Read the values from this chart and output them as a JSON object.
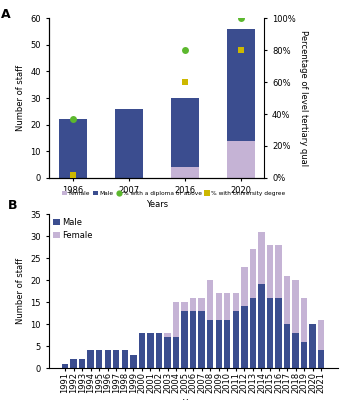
{
  "panel_a": {
    "years": [
      "1986",
      "2007",
      "2016",
      "2020"
    ],
    "male": [
      22,
      26,
      26,
      42
    ],
    "female": [
      0,
      0,
      4,
      14
    ],
    "pct_diploma": [
      37,
      null,
      80,
      100
    ],
    "pct_university": [
      2,
      null,
      60,
      80
    ],
    "bar_color_male": "#3b4d8f",
    "bar_color_female": "#c5b3d5",
    "dot_color_diploma": "#5cb82e",
    "dot_color_university": "#cdb800",
    "ylabel_left": "Number of staff",
    "ylabel_right": "Percentage of level tertiary qual",
    "xlabel": "Years",
    "ylim_left": [
      0,
      60
    ],
    "ylim_right": [
      0,
      100
    ],
    "yticks_left": [
      0,
      10,
      20,
      30,
      40,
      50,
      60
    ],
    "yticks_right": [
      0,
      20,
      40,
      60,
      80,
      100
    ],
    "legend_labels": [
      "Female",
      "Male",
      "% with a diploma or above",
      "% with University degree"
    ],
    "panel_label": "A"
  },
  "panel_b": {
    "years": [
      1991,
      1992,
      1993,
      1994,
      1995,
      1996,
      1997,
      1998,
      1999,
      2000,
      2001,
      2002,
      2003,
      2004,
      2005,
      2006,
      2007,
      2008,
      2009,
      2010,
      2011,
      2012,
      2013,
      2014,
      2015,
      2016,
      2017,
      2018,
      2019,
      2020,
      2021
    ],
    "male": [
      1,
      2,
      2,
      4,
      4,
      4,
      4,
      4,
      3,
      8,
      8,
      8,
      7,
      7,
      13,
      13,
      13,
      11,
      11,
      11,
      13,
      14,
      16,
      19,
      16,
      16,
      10,
      8,
      6,
      10,
      4
    ],
    "female": [
      0,
      0,
      0,
      0,
      0,
      0,
      0,
      0,
      0,
      0,
      0,
      0,
      1,
      8,
      2,
      3,
      3,
      9,
      6,
      6,
      4,
      9,
      11,
      12,
      12,
      12,
      11,
      12,
      10,
      0,
      7
    ],
    "bar_color_male": "#3b4d8f",
    "bar_color_female": "#c5b3d5",
    "ylabel": "Number of staff",
    "xlabel": "Years",
    "ylim": [
      0,
      35
    ],
    "yticks": [
      0,
      5,
      10,
      15,
      20,
      25,
      30,
      35
    ],
    "panel_label": "B"
  },
  "background_color": "#ffffff",
  "fontsize_large": 6,
  "fontsize_small": 5
}
